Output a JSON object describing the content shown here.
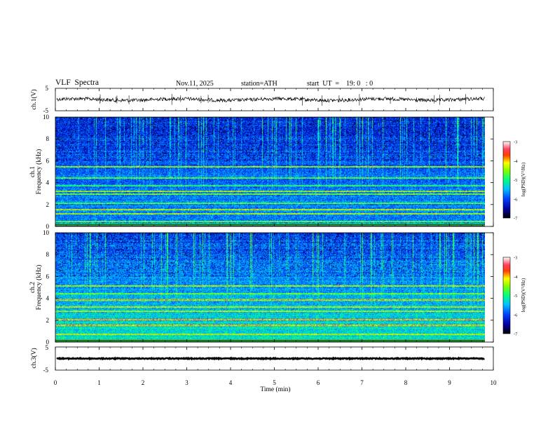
{
  "header": {
    "title": "VLF  Spectra",
    "date": "Nov.11, 2025",
    "station": "station=ATH",
    "start": "start  UT  =    19: 0   : 0"
  },
  "chart_data": [
    {
      "type": "line",
      "name": "ch1-waveform",
      "ylabel": "ch.1(V)",
      "ylim": [
        -5,
        5
      ],
      "yticks": [
        "5",
        "-5"
      ],
      "baseline": 0,
      "noise_amplitude": 0.8
    },
    {
      "type": "heatmap",
      "name": "ch1-spectrogram",
      "ylabel": "ch.1\nFrequency  (kHz)",
      "ylim": [
        0,
        10
      ],
      "yticks": [
        "0",
        "2",
        "4",
        "6",
        "8",
        "10"
      ],
      "colorbar": {
        "label": "log(PSD)(V²/Hz)",
        "range": [
          -7,
          -3
        ],
        "ticks": [
          "-3",
          "-4",
          "-5",
          "-6",
          "-7"
        ]
      },
      "bands_khz": [
        0.5,
        1.2,
        1.6,
        2.2,
        3.0,
        3.3,
        3.8,
        4.5,
        5.5
      ]
    },
    {
      "type": "heatmap",
      "name": "ch2-spectrogram",
      "ylabel": "ch.2\nFrequency  (kHz)",
      "ylim": [
        0,
        10
      ],
      "yticks": [
        "0",
        "2",
        "4",
        "6",
        "8",
        "10"
      ],
      "colorbar": {
        "label": "log(PSD)(V²/Hz)",
        "range": [
          -7,
          -3
        ],
        "ticks": [
          "-3",
          "-4",
          "-5",
          "-6",
          "-7"
        ]
      },
      "bands_khz": [
        0.8,
        1.6,
        2.1,
        2.9,
        3.3,
        3.9,
        4.5,
        5.2
      ]
    },
    {
      "type": "line",
      "name": "ch3-waveform",
      "ylabel": "ch.3(V)",
      "ylim": [
        -5,
        5
      ],
      "yticks": [
        "5",
        "-5"
      ],
      "baseline": 0,
      "noise_amplitude": 0.2
    }
  ],
  "xaxis": {
    "label": "Time  (min)",
    "range": [
      0,
      10
    ],
    "ticks": [
      "0",
      "1",
      "2",
      "3",
      "4",
      "5",
      "6",
      "7",
      "8",
      "9",
      "10"
    ],
    "data_end": 9.8
  },
  "colors": {
    "axis": "#000000",
    "background": "#ffffff"
  }
}
